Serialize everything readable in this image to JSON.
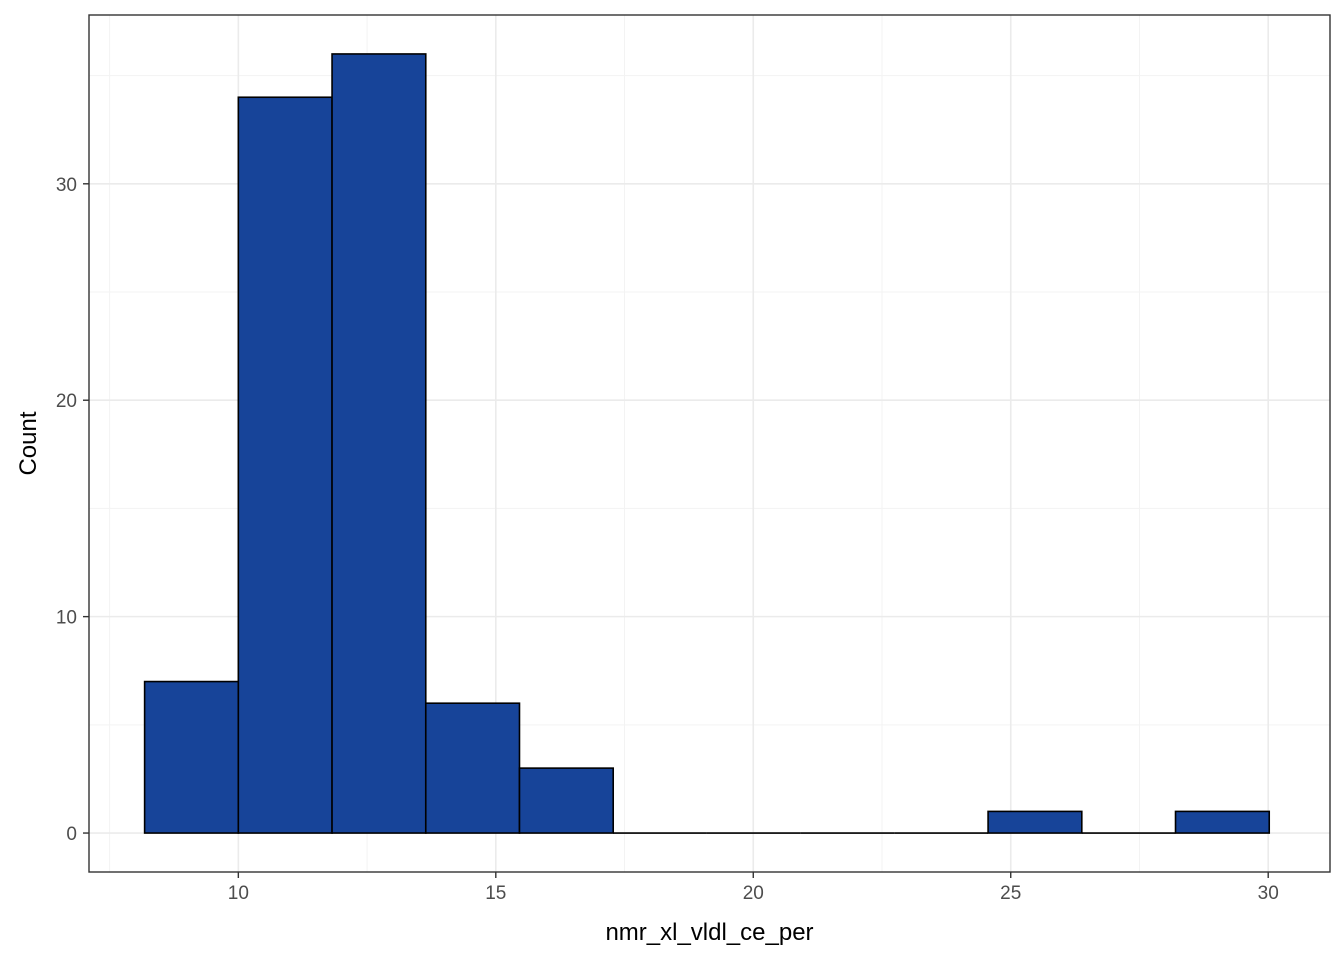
{
  "chart_data": {
    "type": "bar",
    "subtype": "histogram",
    "xlabel": "nmr_xl_vldl_ce_per",
    "ylabel": "Count",
    "xlim": [
      7.1,
      31.2
    ],
    "ylim": [
      -1.8,
      37.8
    ],
    "x_ticks": [
      10,
      15,
      20,
      25,
      30
    ],
    "x_tick_labels": [
      "10",
      "15",
      "20",
      "25",
      "30"
    ],
    "y_ticks": [
      0,
      10,
      20,
      30
    ],
    "y_tick_labels": [
      "0",
      "10",
      "20",
      "30"
    ],
    "bin_width": 1.82,
    "bins": [
      {
        "x0": 8.18,
        "x1": 10.0,
        "count": 7
      },
      {
        "x0": 10.0,
        "x1": 11.82,
        "count": 34
      },
      {
        "x0": 11.82,
        "x1": 13.64,
        "count": 36
      },
      {
        "x0": 13.64,
        "x1": 15.46,
        "count": 6
      },
      {
        "x0": 15.46,
        "x1": 17.28,
        "count": 3
      },
      {
        "x0": 17.28,
        "x1": 19.1,
        "count": 0
      },
      {
        "x0": 19.1,
        "x1": 20.92,
        "count": 0
      },
      {
        "x0": 20.92,
        "x1": 22.74,
        "count": 0
      },
      {
        "x0": 22.74,
        "x1": 24.56,
        "count": 0
      },
      {
        "x0": 24.56,
        "x1": 26.38,
        "count": 1
      },
      {
        "x0": 26.38,
        "x1": 28.2,
        "count": 0
      },
      {
        "x0": 28.2,
        "x1": 30.02,
        "count": 1
      }
    ],
    "grid": true,
    "theme": "bw",
    "colors": {
      "bar_fill": "#174499",
      "bar_outline": "#000000",
      "grid_major": "#ebebeb",
      "grid_minor": "#f3f3f3",
      "panel_border": "#333333"
    }
  }
}
